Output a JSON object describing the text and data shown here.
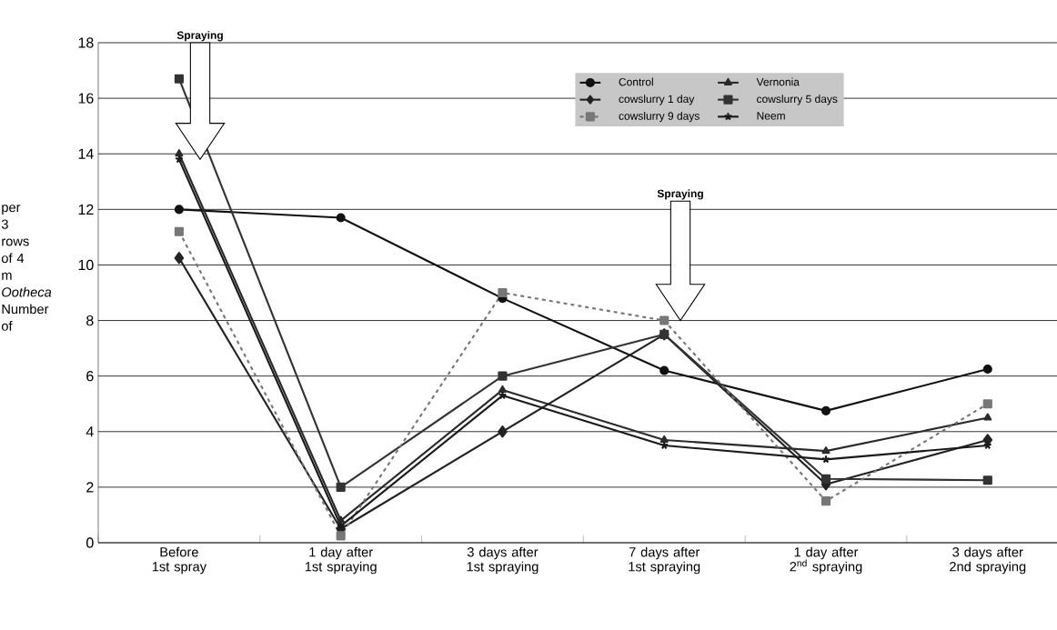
{
  "chart_data": {
    "type": "line",
    "ylabel": "per 3 rows of 4 m *Ootheca* Number of",
    "categories": [
      "Before 1st spray",
      "1 day after 1st spraying",
      "3 days after 1st spraying",
      "7 days after 1st spraying",
      "1 day after 2$^{nd}$ spraying",
      "3 days after 2nd spraying"
    ],
    "series": [
      {
        "name": "Control",
        "color": "#111111",
        "marker": "circle",
        "values": [
          12,
          11.7,
          8.8,
          6.2,
          4.75,
          6.25
        ]
      },
      {
        "name": "Vernonia",
        "color": "#2a2a2a",
        "marker": "triangle",
        "values": [
          14,
          0.8,
          5.5,
          3.7,
          3.3,
          4.5
        ]
      },
      {
        "name": "cowslurry  1 day",
        "color": "#222222",
        "marker": "diamond",
        "values": [
          10.25,
          0.5,
          4.0,
          7.5,
          2.1,
          3.7
        ]
      },
      {
        "name": "cowslurry  5 days",
        "color": "#333333",
        "marker": "square",
        "values": [
          16.7,
          2.0,
          6.0,
          7.5,
          2.3,
          2.25
        ]
      },
      {
        "name": "cowslurry 9 days",
        "color": "#777777",
        "marker": "square",
        "line_style": "dashed",
        "values": [
          11.2,
          0.25,
          9.0,
          8.0,
          1.5,
          5.0
        ]
      },
      {
        "name": "Neem",
        "color": "#1a1a1a",
        "marker": "cross",
        "values": [
          13.8,
          0.6,
          5.3,
          3.5,
          3.0,
          3.5
        ]
      }
    ],
    "annotations": [
      "Spraying",
      "Spraying"
    ],
    "ylim": [
      0,
      18
    ],
    "yticks": [
      0,
      2,
      4,
      6,
      8,
      10,
      12,
      14,
      16,
      18
    ],
    "grid": "y",
    "legend": "top",
    "line_style": "solid"
  }
}
